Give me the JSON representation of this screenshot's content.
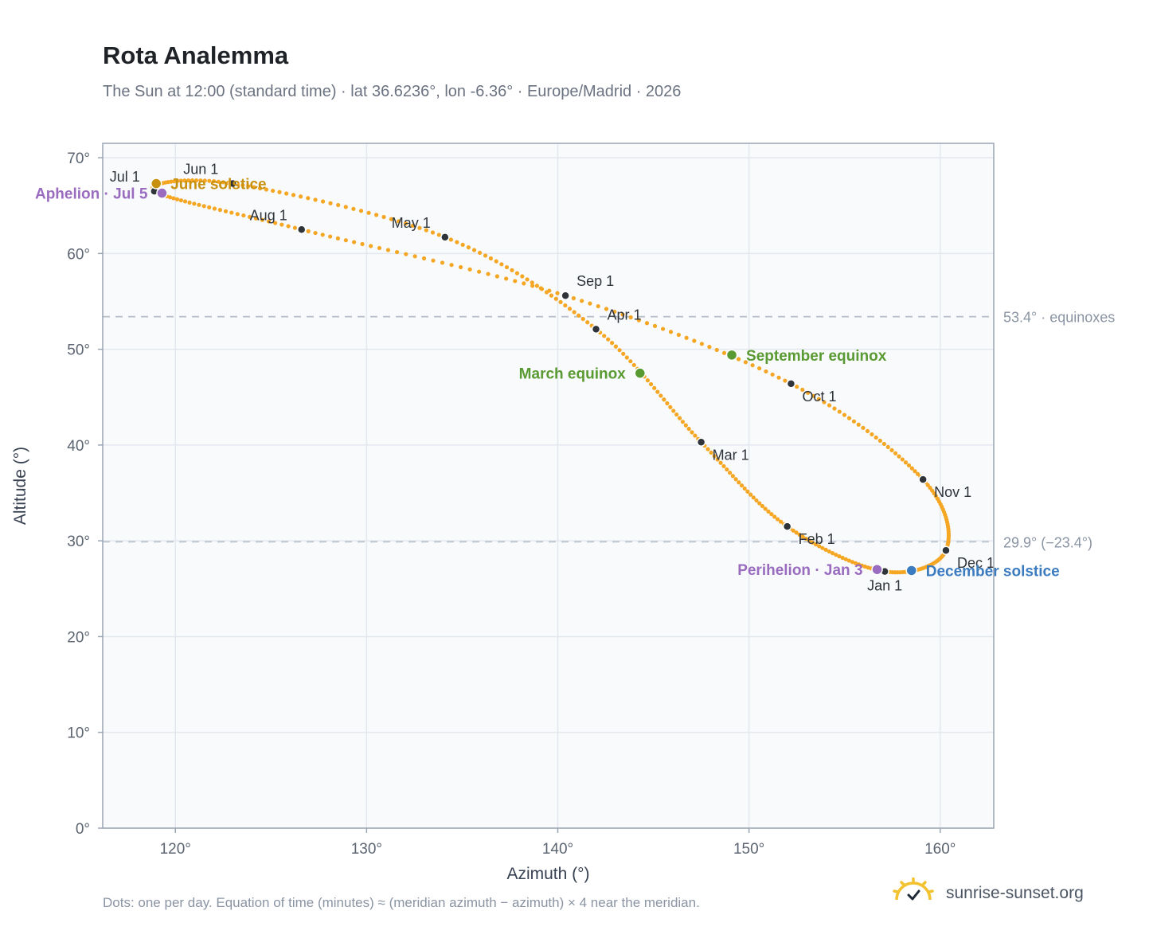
{
  "header": {
    "title": "Rota Analemma",
    "subtitle": "The Sun at 12:00 (standard time) · lat 36.6236°, lon -6.36° · Europe/Madrid · 2026"
  },
  "footer": {
    "note": "Dots: one per day. Equation of time (minutes) ≈ (meridian azimuth − azimuth) × 4 near the meridian.",
    "brand": "sunrise-sunset.org"
  },
  "chart_data": {
    "type": "scatter",
    "title": "Rota Analemma",
    "xlabel": "Azimuth (°)",
    "ylabel": "Altitude (°)",
    "xlim": [
      116.2,
      162.8
    ],
    "ylim": [
      0,
      71.5
    ],
    "x_ticks": [
      120,
      130,
      140,
      150,
      160
    ],
    "y_ticks": [
      0,
      10,
      20,
      30,
      40,
      50,
      60,
      70
    ],
    "x_tick_suffix": "°",
    "y_tick_suffix": "°",
    "grid": true,
    "colors": {
      "path": "#f5a623",
      "month_dot": "#2f343b",
      "solstice_june": "#c8900f",
      "solstice_december": "#3b7bbf",
      "equinox": "#5a9a32",
      "apsis": "#9a6cc0",
      "reference_line": "#b8c2cc",
      "plot_bg": "#f8fafc",
      "frame": "#9aa5b4"
    },
    "reference_lines": [
      {
        "y": 53.4,
        "label": "53.4° · equinoxes"
      },
      {
        "y": 29.9,
        "label": "29.9° (−23.4°)"
      }
    ],
    "path_anchors": [
      {
        "day": 1,
        "x": 157.1,
        "y": 26.8
      },
      {
        "day": 32,
        "x": 152.0,
        "y": 31.5
      },
      {
        "day": 60,
        "x": 147.5,
        "y": 40.3
      },
      {
        "day": 91,
        "x": 142.0,
        "y": 52.1
      },
      {
        "day": 121,
        "x": 134.1,
        "y": 61.7
      },
      {
        "day": 152,
        "x": 123.0,
        "y": 67.3
      },
      {
        "day": 182,
        "x": 118.9,
        "y": 66.5
      },
      {
        "day": 213,
        "x": 126.6,
        "y": 62.5
      },
      {
        "day": 244,
        "x": 140.4,
        "y": 55.6
      },
      {
        "day": 274,
        "x": 152.2,
        "y": 46.4
      },
      {
        "day": 305,
        "x": 159.1,
        "y": 36.4
      },
      {
        "day": 335,
        "x": 160.3,
        "y": 29.0
      },
      {
        "day": 366,
        "x": 157.1,
        "y": 26.8
      }
    ],
    "month_markers": [
      {
        "label": "Jan 1",
        "x": 157.1,
        "y": 26.8,
        "pos": "below"
      },
      {
        "label": "Feb 1",
        "x": 152.0,
        "y": 31.5,
        "pos": "below-right"
      },
      {
        "label": "Mar 1",
        "x": 147.5,
        "y": 40.3,
        "pos": "below-right"
      },
      {
        "label": "Apr 1",
        "x": 142.0,
        "y": 52.1,
        "pos": "above-right"
      },
      {
        "label": "May 1",
        "x": 134.1,
        "y": 61.7,
        "pos": "above-left"
      },
      {
        "label": "Jun 1",
        "x": 123.0,
        "y": 67.3,
        "pos": "above-left"
      },
      {
        "label": "Jul 1",
        "x": 118.9,
        "y": 66.5,
        "pos": "above-left"
      },
      {
        "label": "Aug 1",
        "x": 126.6,
        "y": 62.5,
        "pos": "above-left"
      },
      {
        "label": "Sep 1",
        "x": 140.4,
        "y": 55.6,
        "pos": "above-right"
      },
      {
        "label": "Oct 1",
        "x": 152.2,
        "y": 46.4,
        "pos": "below-right"
      },
      {
        "label": "Nov 1",
        "x": 159.1,
        "y": 36.4,
        "pos": "below-right"
      },
      {
        "label": "Dec 1",
        "x": 160.3,
        "y": 29.0,
        "pos": "below-right"
      }
    ],
    "events": [
      {
        "label": "June solstice",
        "x": 119.0,
        "y": 67.3,
        "color": "#c8900f",
        "pos": "right"
      },
      {
        "label": "Aphelion · Jul 5",
        "x": 119.3,
        "y": 66.3,
        "color": "#9a6cc0",
        "pos": "left"
      },
      {
        "label": "March equinox",
        "x": 144.3,
        "y": 47.5,
        "color": "#5a9a32",
        "pos": "left"
      },
      {
        "label": "September equinox",
        "x": 149.1,
        "y": 49.4,
        "color": "#5a9a32",
        "pos": "right"
      },
      {
        "label": "Perihelion · Jan 3",
        "x": 156.7,
        "y": 27.0,
        "color": "#9a6cc0",
        "pos": "left"
      },
      {
        "label": "December solstice",
        "x": 158.5,
        "y": 26.9,
        "color": "#3b7bbf",
        "pos": "right"
      }
    ]
  }
}
